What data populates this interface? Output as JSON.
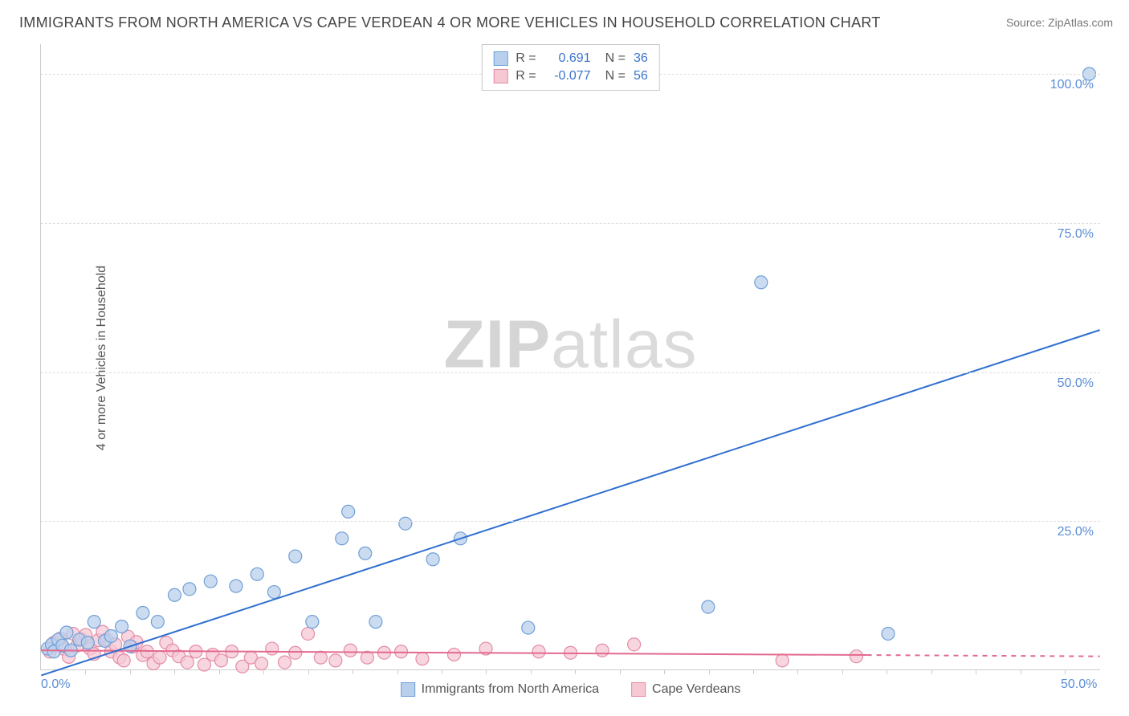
{
  "title": "IMMIGRANTS FROM NORTH AMERICA VS CAPE VERDEAN 4 OR MORE VEHICLES IN HOUSEHOLD CORRELATION CHART",
  "source_prefix": "Source: ",
  "source_name": "ZipAtlas.com",
  "ylabel": "4 or more Vehicles in Household",
  "watermark_bold": "ZIP",
  "watermark_light": "atlas",
  "chart": {
    "type": "scatter",
    "xlim": [
      0,
      50
    ],
    "ylim": [
      0,
      105
    ],
    "x_ticks": [
      0,
      50
    ],
    "x_tick_labels": [
      "0.0%",
      "50.0%"
    ],
    "y_ticks": [
      25,
      50,
      75,
      100
    ],
    "y_tick_labels": [
      "25.0%",
      "50.0%",
      "75.0%",
      "100.0%"
    ],
    "minor_x_ticks": [
      2.1,
      4.2,
      6.3,
      8.4,
      10.5,
      12.6,
      14.7,
      16.8,
      18.9,
      21.0,
      23.1,
      25.2,
      27.3,
      29.4,
      31.5,
      33.6,
      35.7,
      37.8,
      39.9,
      42.0,
      44.1,
      46.2,
      48.3
    ],
    "background_color": "#ffffff",
    "grid_color": "#dddddd",
    "axis_color": "#cccccc",
    "tick_label_color": "#5b8dd6",
    "series": [
      {
        "name": "Immigrants from North America",
        "marker_fill": "#b9d0ec",
        "marker_stroke": "#6f9fd8",
        "marker_opacity": 0.75,
        "marker_radius": 8,
        "line_color": "#2f6fd0",
        "line_width": 2,
        "line_dash": null,
        "line_dash_extend": null,
        "R": "0.691",
        "N": "36",
        "trend": {
          "x1": 0,
          "y1": -1,
          "x2": 50,
          "y2": 57,
          "x_solid_end": 50
        },
        "points": [
          [
            0.3,
            3.5
          ],
          [
            0.5,
            4.2
          ],
          [
            0.6,
            3.0
          ],
          [
            0.8,
            5.0
          ],
          [
            1.0,
            4.0
          ],
          [
            1.2,
            6.2
          ],
          [
            1.4,
            3.2
          ],
          [
            1.8,
            5.0
          ],
          [
            2.2,
            4.5
          ],
          [
            2.5,
            8.0
          ],
          [
            3.0,
            4.8
          ],
          [
            3.3,
            5.6
          ],
          [
            3.8,
            7.2
          ],
          [
            4.2,
            3.9
          ],
          [
            4.8,
            9.5
          ],
          [
            5.5,
            8.0
          ],
          [
            6.3,
            12.5
          ],
          [
            7.0,
            13.5
          ],
          [
            8.0,
            14.8
          ],
          [
            9.2,
            14.0
          ],
          [
            10.2,
            16.0
          ],
          [
            11.0,
            13.0
          ],
          [
            12.0,
            19.0
          ],
          [
            12.8,
            8.0
          ],
          [
            14.2,
            22.0
          ],
          [
            14.5,
            26.5
          ],
          [
            15.3,
            19.5
          ],
          [
            15.8,
            8.0
          ],
          [
            17.2,
            24.5
          ],
          [
            18.5,
            18.5
          ],
          [
            19.8,
            22.0
          ],
          [
            23.0,
            7.0
          ],
          [
            31.5,
            10.5
          ],
          [
            34.0,
            65.0
          ],
          [
            40.0,
            6.0
          ],
          [
            49.5,
            100.0
          ]
        ]
      },
      {
        "name": "Cape Verdeans",
        "marker_fill": "#f6c8d4",
        "marker_stroke": "#e48ca6",
        "marker_opacity": 0.75,
        "marker_radius": 8,
        "line_color": "#e26a8f",
        "line_width": 2,
        "line_dash": null,
        "line_dash_extend": "6,6",
        "R": "-0.077",
        "N": "56",
        "trend": {
          "x1": 0,
          "y1": 3.2,
          "x2": 50,
          "y2": 2.2,
          "x_solid_end": 39
        },
        "points": [
          [
            0.4,
            3.0
          ],
          [
            0.6,
            4.5
          ],
          [
            0.9,
            5.2
          ],
          [
            1.1,
            3.4
          ],
          [
            1.3,
            2.1
          ],
          [
            1.5,
            6.0
          ],
          [
            1.7,
            4.0
          ],
          [
            1.9,
            5.1
          ],
          [
            2.1,
            5.8
          ],
          [
            2.3,
            3.5
          ],
          [
            2.5,
            2.6
          ],
          [
            2.7,
            4.9
          ],
          [
            2.9,
            6.3
          ],
          [
            3.1,
            5.0
          ],
          [
            3.3,
            3.0
          ],
          [
            3.5,
            4.2
          ],
          [
            3.7,
            2.0
          ],
          [
            3.9,
            1.5
          ],
          [
            4.1,
            5.5
          ],
          [
            4.3,
            3.8
          ],
          [
            4.5,
            4.6
          ],
          [
            4.8,
            2.4
          ],
          [
            5.0,
            3.0
          ],
          [
            5.3,
            1.0
          ],
          [
            5.6,
            2.0
          ],
          [
            5.9,
            4.5
          ],
          [
            6.2,
            3.2
          ],
          [
            6.5,
            2.2
          ],
          [
            6.9,
            1.2
          ],
          [
            7.3,
            3.0
          ],
          [
            7.7,
            0.8
          ],
          [
            8.1,
            2.5
          ],
          [
            8.5,
            1.5
          ],
          [
            9.0,
            3.0
          ],
          [
            9.5,
            0.5
          ],
          [
            9.9,
            2.0
          ],
          [
            10.4,
            1.0
          ],
          [
            10.9,
            3.5
          ],
          [
            11.5,
            1.2
          ],
          [
            12.0,
            2.8
          ],
          [
            12.6,
            6.0
          ],
          [
            13.2,
            2.0
          ],
          [
            13.9,
            1.5
          ],
          [
            14.6,
            3.2
          ],
          [
            15.4,
            2.0
          ],
          [
            16.2,
            2.8
          ],
          [
            17.0,
            3.0
          ],
          [
            18.0,
            1.8
          ],
          [
            19.5,
            2.5
          ],
          [
            21.0,
            3.5
          ],
          [
            23.5,
            3.0
          ],
          [
            25.0,
            2.8
          ],
          [
            26.5,
            3.2
          ],
          [
            28.0,
            4.2
          ],
          [
            35.0,
            1.5
          ],
          [
            38.5,
            2.2
          ]
        ]
      }
    ],
    "legend_top": {
      "r_label": "R =",
      "n_label": "N ="
    },
    "legend_bottom": [
      {
        "label": "Immigrants from North America",
        "fill": "#b9d0ec",
        "stroke": "#6f9fd8"
      },
      {
        "label": "Cape Verdeans",
        "fill": "#f6c8d4",
        "stroke": "#e48ca6"
      }
    ]
  }
}
